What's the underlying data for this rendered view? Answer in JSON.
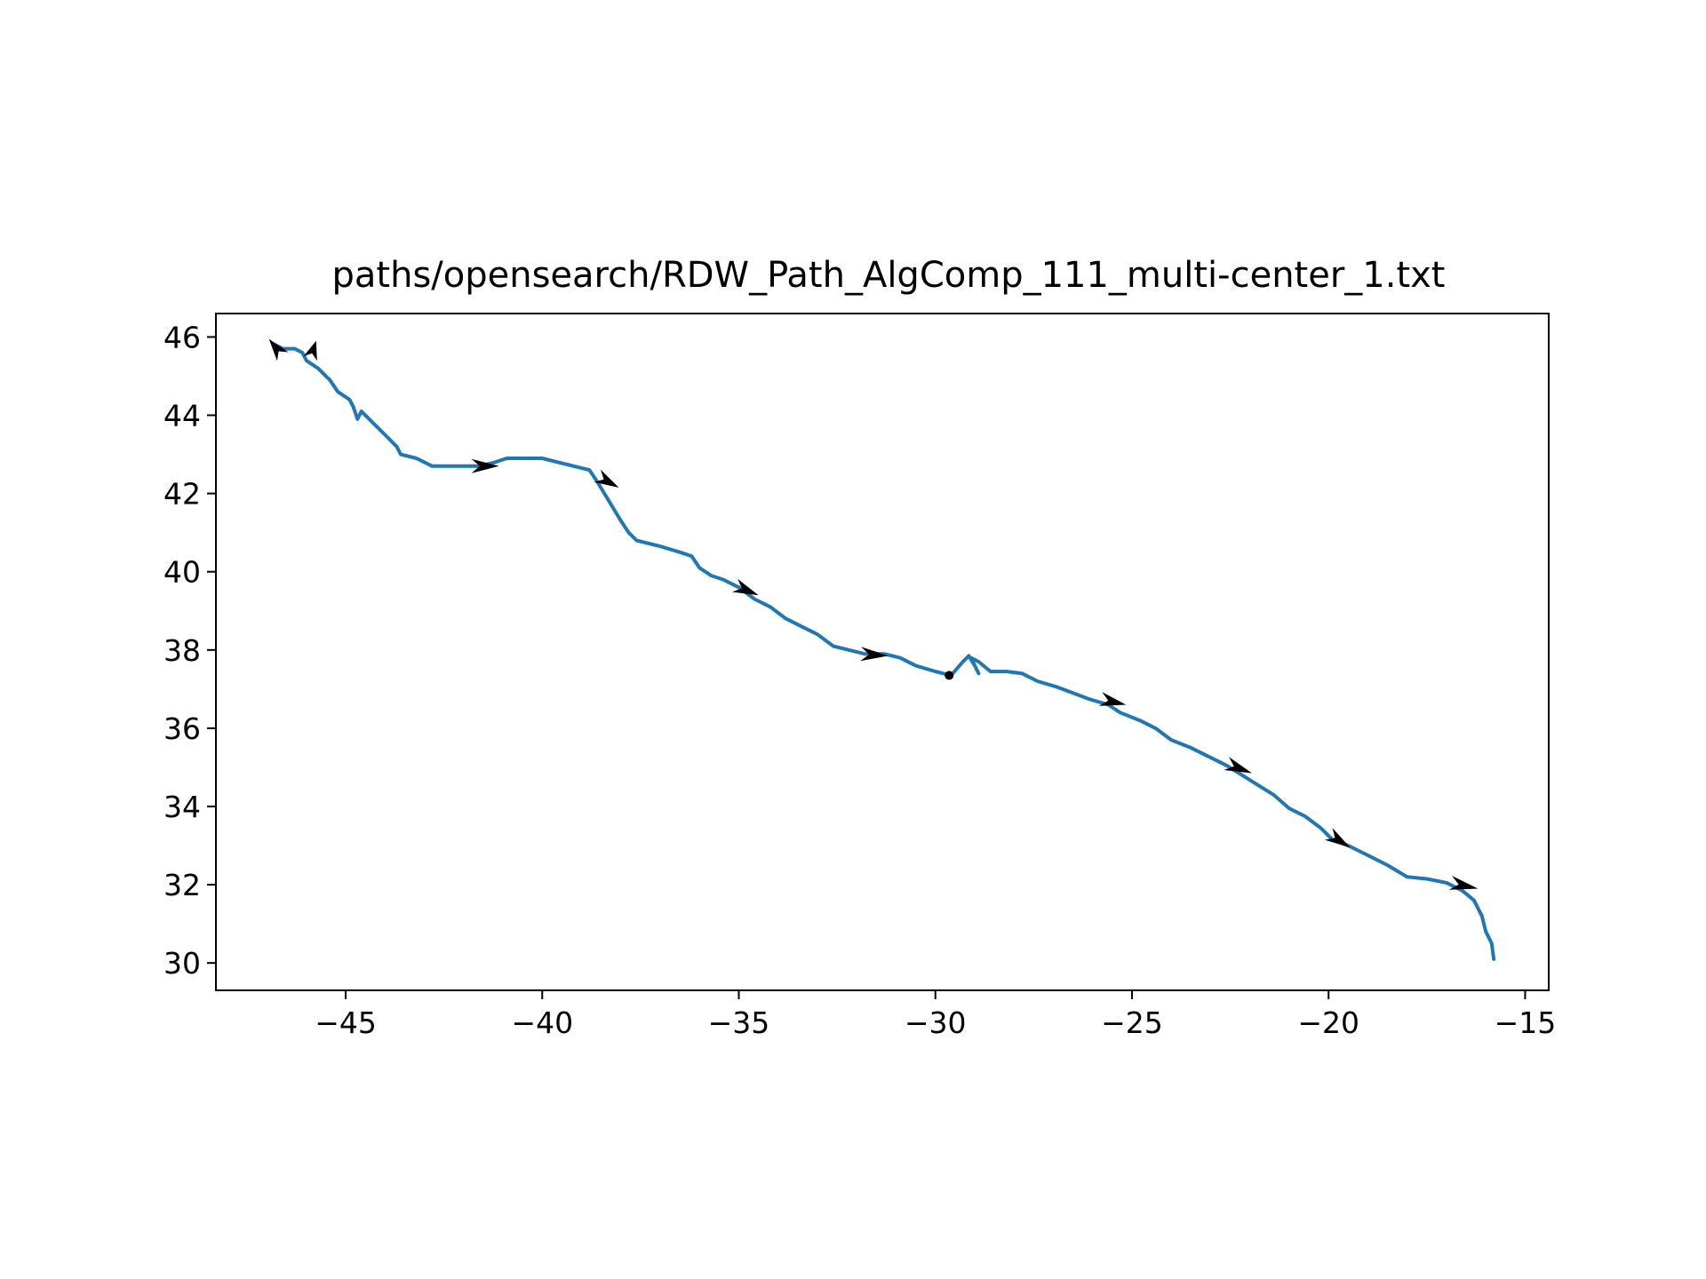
{
  "chart_data": {
    "type": "line",
    "title": "paths/opensearch/RDW_Path_AlgComp_111_multi-center_1.txt",
    "xlabel": "",
    "ylabel": "",
    "xlim": [
      -48.3,
      -14.4
    ],
    "ylim": [
      29.3,
      46.6
    ],
    "xticks": [
      -45,
      -40,
      -35,
      -30,
      -25,
      -20,
      -15
    ],
    "yticks": [
      30,
      32,
      34,
      36,
      38,
      40,
      42,
      44,
      46
    ],
    "xtick_labels": [
      "−45",
      "−40",
      "−35",
      "−30",
      "−25",
      "−20",
      "−15"
    ],
    "ytick_labels": [
      "30",
      "32",
      "34",
      "36",
      "38",
      "40",
      "42",
      "44",
      "46"
    ],
    "grid": false,
    "line_color": "#1f77b4",
    "arrow_color": "#000000",
    "series": [
      {
        "points": [
          [
            -46.8,
            45.8
          ],
          [
            -46.6,
            45.7
          ],
          [
            -46.3,
            45.7
          ],
          [
            -46.1,
            45.6
          ],
          [
            -46.0,
            45.4
          ],
          [
            -45.7,
            45.2
          ],
          [
            -45.4,
            44.9
          ],
          [
            -45.2,
            44.6
          ],
          [
            -44.9,
            44.4
          ],
          [
            -44.8,
            44.2
          ],
          [
            -44.7,
            43.9
          ],
          [
            -44.6,
            44.1
          ],
          [
            -44.3,
            43.8
          ],
          [
            -44.0,
            43.5
          ],
          [
            -43.7,
            43.2
          ],
          [
            -43.6,
            43.0
          ],
          [
            -43.2,
            42.9
          ],
          [
            -42.8,
            42.7
          ],
          [
            -42.2,
            42.7
          ],
          [
            -41.6,
            42.7
          ],
          [
            -41.2,
            42.8
          ],
          [
            -40.9,
            42.9
          ],
          [
            -40.5,
            42.9
          ],
          [
            -40.0,
            42.9
          ],
          [
            -39.6,
            42.8
          ],
          [
            -39.2,
            42.7
          ],
          [
            -38.8,
            42.6
          ],
          [
            -38.6,
            42.3
          ],
          [
            -38.3,
            41.8
          ],
          [
            -38.0,
            41.3
          ],
          [
            -37.8,
            41.0
          ],
          [
            -37.6,
            40.8
          ],
          [
            -37.0,
            40.65
          ],
          [
            -36.5,
            40.5
          ],
          [
            -36.2,
            40.4
          ],
          [
            -36.0,
            40.1
          ],
          [
            -35.7,
            39.9
          ],
          [
            -35.4,
            39.8
          ],
          [
            -35.0,
            39.6
          ],
          [
            -34.6,
            39.3
          ],
          [
            -34.2,
            39.1
          ],
          [
            -33.8,
            38.8
          ],
          [
            -33.4,
            38.6
          ],
          [
            -33.0,
            38.4
          ],
          [
            -32.6,
            38.1
          ],
          [
            -32.2,
            38.0
          ],
          [
            -31.8,
            37.9
          ],
          [
            -31.3,
            37.9
          ],
          [
            -30.9,
            37.8
          ],
          [
            -30.5,
            37.6
          ],
          [
            -30.0,
            37.45
          ],
          [
            -29.6,
            37.35
          ],
          [
            -29.3,
            37.7
          ],
          [
            -29.15,
            37.85
          ],
          [
            -29.0,
            37.6
          ],
          [
            -28.9,
            37.4
          ],
          [
            -29.1,
            37.8
          ],
          [
            -28.9,
            37.7
          ],
          [
            -28.6,
            37.45
          ],
          [
            -28.2,
            37.45
          ],
          [
            -27.8,
            37.4
          ],
          [
            -27.4,
            37.2
          ],
          [
            -26.9,
            37.05
          ],
          [
            -26.5,
            36.9
          ],
          [
            -26.1,
            36.75
          ],
          [
            -25.6,
            36.6
          ],
          [
            -25.3,
            36.4
          ],
          [
            -24.8,
            36.2
          ],
          [
            -24.4,
            36.0
          ],
          [
            -24.0,
            35.7
          ],
          [
            -23.5,
            35.5
          ],
          [
            -23.0,
            35.25
          ],
          [
            -22.6,
            35.05
          ],
          [
            -22.2,
            34.8
          ],
          [
            -21.8,
            34.55
          ],
          [
            -21.4,
            34.3
          ],
          [
            -21.0,
            33.95
          ],
          [
            -20.6,
            33.75
          ],
          [
            -20.2,
            33.45
          ],
          [
            -19.9,
            33.15
          ],
          [
            -19.5,
            33.0
          ],
          [
            -19.0,
            32.75
          ],
          [
            -18.5,
            32.5
          ],
          [
            -18.0,
            32.2
          ],
          [
            -17.5,
            32.15
          ],
          [
            -17.0,
            32.05
          ],
          [
            -16.6,
            31.85
          ],
          [
            -16.3,
            31.6
          ],
          [
            -16.1,
            31.2
          ],
          [
            -16.0,
            30.8
          ],
          [
            -15.85,
            30.5
          ],
          [
            -15.8,
            30.1
          ]
        ]
      }
    ],
    "arrows": [
      {
        "x": -46.6,
        "y": 45.5,
        "dx": -0.35,
        "dy": 0.45
      },
      {
        "x": -45.9,
        "y": 45.45,
        "dx": 0.15,
        "dy": 0.45
      },
      {
        "x": -41.8,
        "y": 42.7,
        "dx": 0.7,
        "dy": 0.0
      },
      {
        "x": -38.6,
        "y": 42.45,
        "dx": 0.55,
        "dy": -0.3
      },
      {
        "x": -35.1,
        "y": 39.65,
        "dx": 0.6,
        "dy": -0.25
      },
      {
        "x": -31.9,
        "y": 37.9,
        "dx": 0.7,
        "dy": -0.05
      },
      {
        "x": -29.65,
        "y": 37.35,
        "dx": 0.0,
        "dy": 0.0
      },
      {
        "x": -25.8,
        "y": 36.75,
        "dx": 0.65,
        "dy": -0.15
      },
      {
        "x": -22.6,
        "y": 35.1,
        "dx": 0.65,
        "dy": -0.25
      },
      {
        "x": -20.0,
        "y": 33.3,
        "dx": 0.55,
        "dy": -0.35
      },
      {
        "x": -16.9,
        "y": 32.05,
        "dx": 0.7,
        "dy": -0.15
      }
    ]
  }
}
